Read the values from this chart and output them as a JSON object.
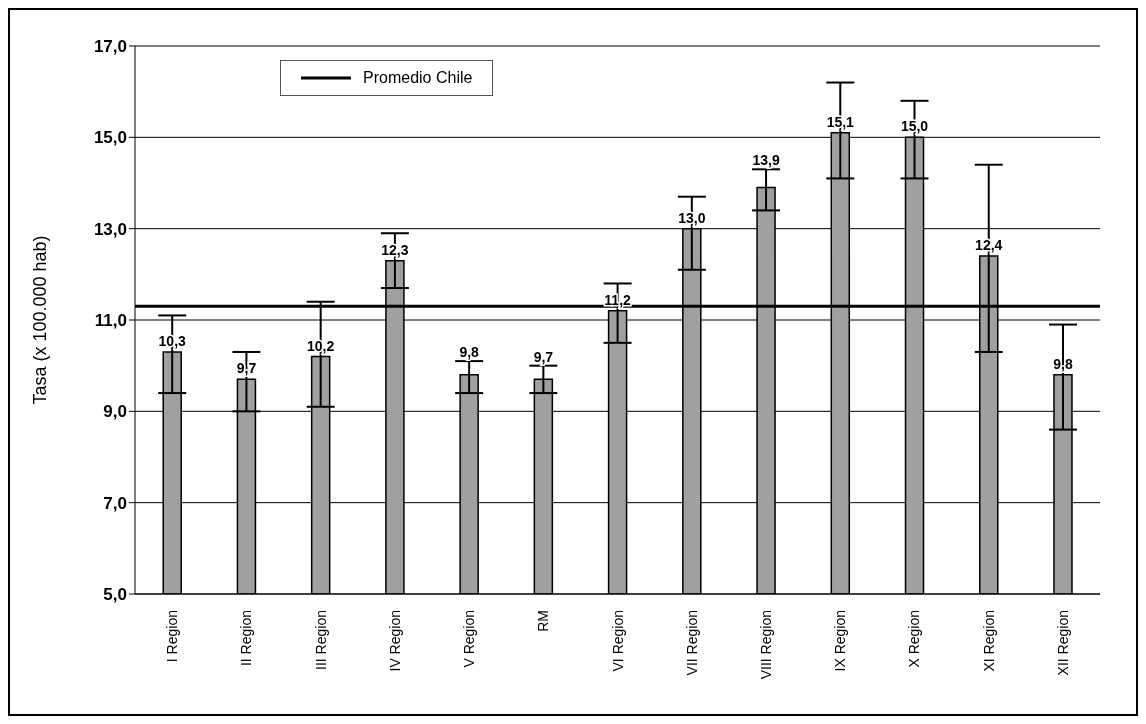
{
  "chart_data": {
    "type": "bar",
    "ylabel": "Tasa (x 100.000 hab)",
    "categories": [
      "I Region",
      "II Region",
      "III Region",
      "IV Region",
      "V Region",
      "RM",
      "VI Region",
      "VII Region",
      "VIII Region",
      "IX Region",
      "X Region",
      "XI Region",
      "XII Region"
    ],
    "values": [
      10.3,
      9.7,
      10.2,
      12.3,
      9.8,
      9.7,
      11.2,
      13.0,
      13.9,
      15.1,
      15.0,
      12.4,
      9.8
    ],
    "value_labels": [
      "10,3",
      "9,7",
      "10,2",
      "12,3",
      "9,8",
      "9,7",
      "11,2",
      "13,0",
      "13,9",
      "15,1",
      "15,0",
      "12,4",
      "9,8"
    ],
    "errors": [
      [
        9.4,
        11.1
      ],
      [
        9.0,
        10.3
      ],
      [
        9.1,
        11.4
      ],
      [
        11.7,
        12.9
      ],
      [
        9.4,
        10.1
      ],
      [
        9.4,
        10.0
      ],
      [
        10.5,
        11.8
      ],
      [
        12.1,
        13.7
      ],
      [
        13.4,
        14.3
      ],
      [
        14.1,
        16.2
      ],
      [
        14.1,
        15.8
      ],
      [
        10.3,
        14.4
      ],
      [
        8.6,
        10.9
      ]
    ],
    "color": "#a0a0a0",
    "ylim": [
      5,
      17
    ],
    "yticks": [
      {
        "value": 5,
        "label": "5,0"
      },
      {
        "value": 7,
        "label": "7,0"
      },
      {
        "value": 9,
        "label": "9,0"
      },
      {
        "value": 11,
        "label": "11,0"
      },
      {
        "value": 13,
        "label": "13,0"
      },
      {
        "value": 15,
        "label": "15,0"
      },
      {
        "value": 17,
        "label": "17,0"
      }
    ],
    "ref_lines": [
      {
        "axis": "y",
        "value": 11.3,
        "label": "Promedio Chile",
        "color": "#000000"
      }
    ],
    "grid": "y",
    "legend": "top left"
  }
}
